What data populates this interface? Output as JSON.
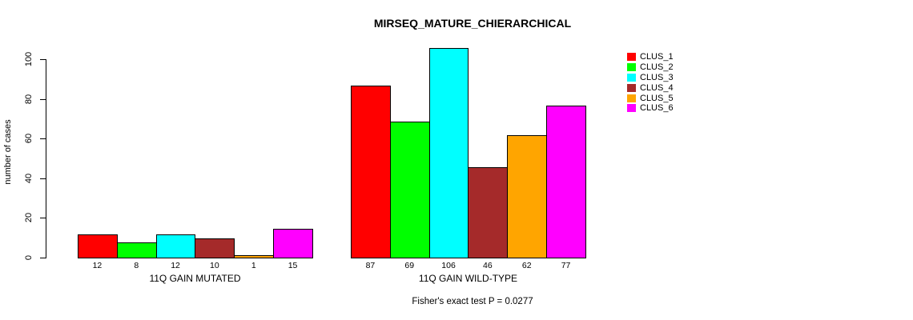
{
  "chart_data": {
    "type": "bar",
    "title": "MIRSEQ_MATURE_CHIERARCHICAL",
    "ylabel": "number of cases",
    "xlabel": "",
    "ylim": [
      0,
      110
    ],
    "yticks": [
      0,
      20,
      40,
      60,
      80,
      100
    ],
    "grid": false,
    "legend_position": "right-outside",
    "legend": [
      {
        "label": "CLUS_1",
        "color": "#FF0000"
      },
      {
        "label": "CLUS_2",
        "color": "#00FF00"
      },
      {
        "label": "CLUS_3",
        "color": "#00FFFF"
      },
      {
        "label": "CLUS_4",
        "color": "#A52A2A"
      },
      {
        "label": "CLUS_5",
        "color": "#FFA500"
      },
      {
        "label": "CLUS_6",
        "color": "#FF00FF"
      }
    ],
    "groups": [
      {
        "label": "11Q GAIN MUTATED",
        "values": [
          12,
          8,
          12,
          10,
          1,
          15
        ]
      },
      {
        "label": "11Q GAIN WILD-TYPE",
        "values": [
          87,
          69,
          106,
          46,
          62,
          77
        ]
      }
    ],
    "bar_value_labels_shown": true,
    "annotation": "Fisher's exact test P = 0.0277"
  }
}
